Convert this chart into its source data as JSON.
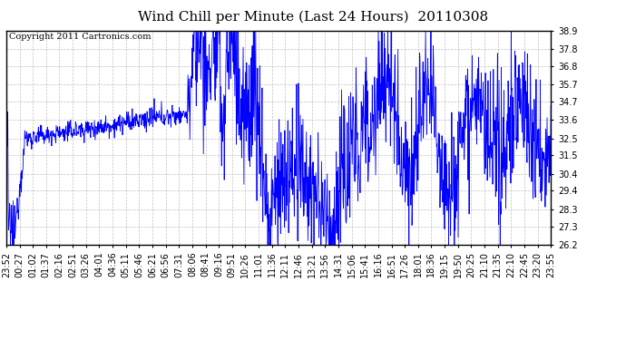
{
  "title": "Wind Chill per Minute (Last 24 Hours)  20110308",
  "copyright_text": "Copyright 2011 Cartronics.com",
  "y_min": 26.2,
  "y_max": 38.9,
  "y_ticks": [
    26.2,
    27.3,
    28.3,
    29.4,
    30.4,
    31.5,
    32.5,
    33.6,
    34.7,
    35.7,
    36.8,
    37.8,
    38.9
  ],
  "x_tick_labels": [
    "23:52",
    "00:27",
    "01:02",
    "01:37",
    "02:16",
    "02:51",
    "03:26",
    "04:01",
    "04:36",
    "05:11",
    "05:46",
    "06:21",
    "06:56",
    "07:31",
    "08:06",
    "08:41",
    "09:16",
    "09:51",
    "10:26",
    "11:01",
    "11:36",
    "12:11",
    "12:46",
    "13:21",
    "13:56",
    "14:31",
    "15:06",
    "15:41",
    "16:16",
    "16:51",
    "17:26",
    "18:01",
    "18:36",
    "19:15",
    "19:50",
    "20:25",
    "21:10",
    "21:35",
    "22:10",
    "22:45",
    "23:20",
    "23:55"
  ],
  "line_color": "#0000ff",
  "bg_color": "#ffffff",
  "plot_bg_color": "#ffffff",
  "grid_color": "#b0b0b0",
  "title_fontsize": 11,
  "copyright_fontsize": 7,
  "tick_fontsize": 7
}
